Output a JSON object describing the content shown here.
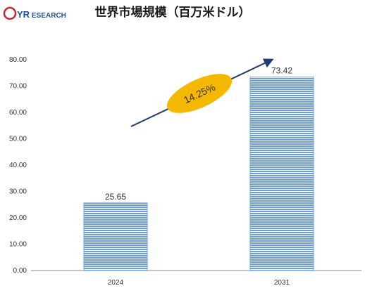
{
  "logo": {
    "o": "Q",
    "yr": "YR",
    "rest": "ESEARCH"
  },
  "colors": {
    "bar": "#6d9fd4",
    "bar_stripe": "#ffffff",
    "arrow": "#1f3b70",
    "badge": "#f5b800",
    "axis": "#888888"
  },
  "chart_data": {
    "type": "bar",
    "title": "世界市場規模（百万米ドル）",
    "categories": [
      "2024",
      "2031"
    ],
    "values": [
      25.65,
      73.42
    ],
    "value_labels": [
      "25.65",
      "73.42"
    ],
    "ylim": [
      0,
      80
    ],
    "yticks": [
      "0.00",
      "10.00",
      "20.00",
      "30.00",
      "40.00",
      "50.00",
      "60.00",
      "70.00",
      "80.00"
    ],
    "xlabel": "",
    "ylabel": "",
    "grid": false,
    "annotation": {
      "text": "14.25%"
    }
  }
}
